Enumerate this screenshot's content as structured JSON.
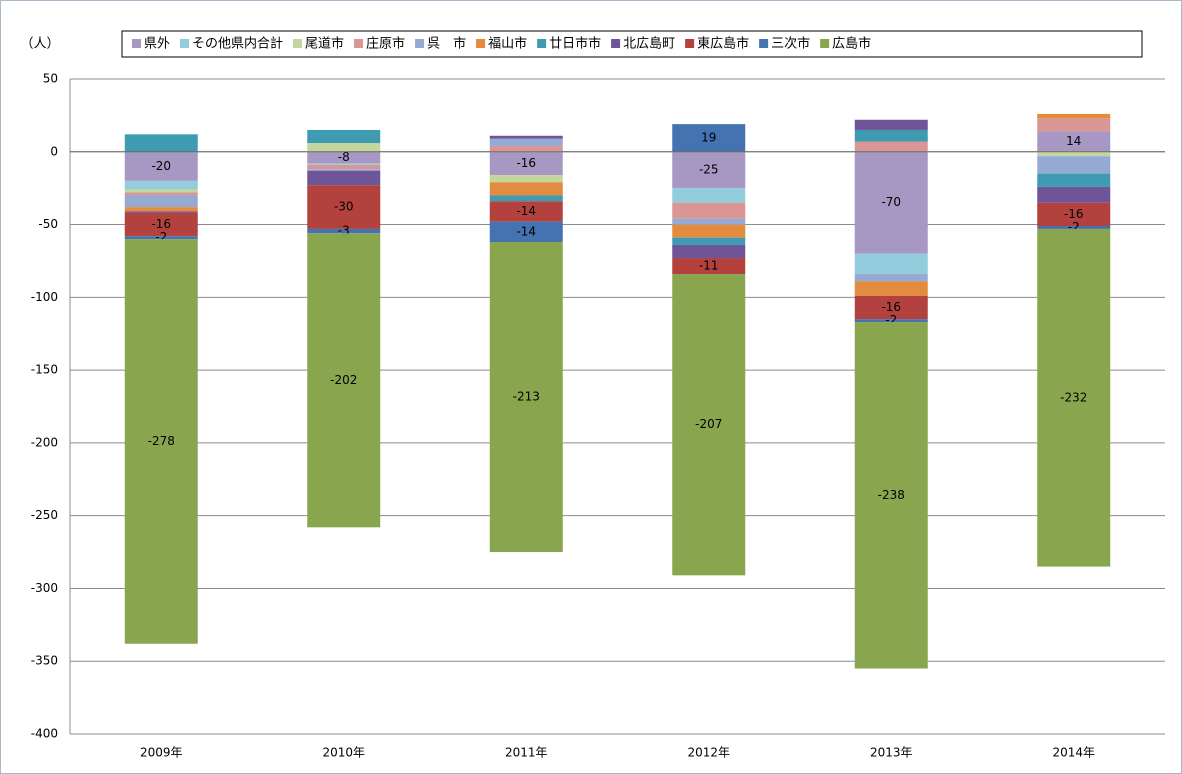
{
  "chart_data": {
    "type": "stacked_bar",
    "y_label": "（人）",
    "categories": [
      "2009年",
      "2010年",
      "2011年",
      "2012年",
      "2013年",
      "2014年"
    ],
    "ylim": [
      -400,
      50
    ],
    "yticks": [
      50,
      0,
      -50,
      -100,
      -150,
      -200,
      -250,
      -300,
      -350,
      -400
    ],
    "grid": true,
    "series": [
      {
        "name": "県外",
        "color": "#a797c3",
        "values": [
          -20,
          -8,
          -16,
          -25,
          -70,
          14
        ],
        "show_labels": true
      },
      {
        "name": "その他県内合計",
        "color": "#93cddd",
        "values": [
          -6,
          -1,
          0,
          -10,
          -14,
          0
        ]
      },
      {
        "name": "尾道市",
        "color": "#c3d69b",
        "values": [
          -2,
          6,
          -5,
          0,
          0,
          -3
        ]
      },
      {
        "name": "庄原市",
        "color": "#d99694",
        "values": [
          -2,
          -3,
          4,
          -11,
          7,
          9
        ]
      },
      {
        "name": "呉　市",
        "color": "#95a9d5",
        "values": [
          -8,
          -1,
          5,
          -4,
          -5,
          -12
        ]
      },
      {
        "name": "福山市",
        "color": "#e38b3f",
        "values": [
          -3,
          0,
          -9,
          -9,
          -10,
          3
        ]
      },
      {
        "name": "廿日市市",
        "color": "#3e9bb2",
        "values": [
          12,
          9,
          -4,
          -5,
          8,
          -9
        ]
      },
      {
        "name": "北広島町",
        "color": "#6d5598",
        "values": [
          -1,
          -10,
          2,
          -9,
          7,
          -11
        ]
      },
      {
        "name": "東広島市",
        "color": "#b3423f",
        "values": [
          -16,
          -30,
          -14,
          -11,
          -16,
          -16
        ],
        "show_labels": true
      },
      {
        "name": "三次市",
        "color": "#4572b0",
        "values": [
          -2,
          -3,
          -14,
          19,
          -2,
          -2
        ],
        "show_labels": true
      },
      {
        "name": "広島市",
        "color": "#89a54e",
        "values": [
          -278,
          -202,
          -213,
          -207,
          -238,
          -232
        ],
        "show_labels": true
      }
    ]
  }
}
